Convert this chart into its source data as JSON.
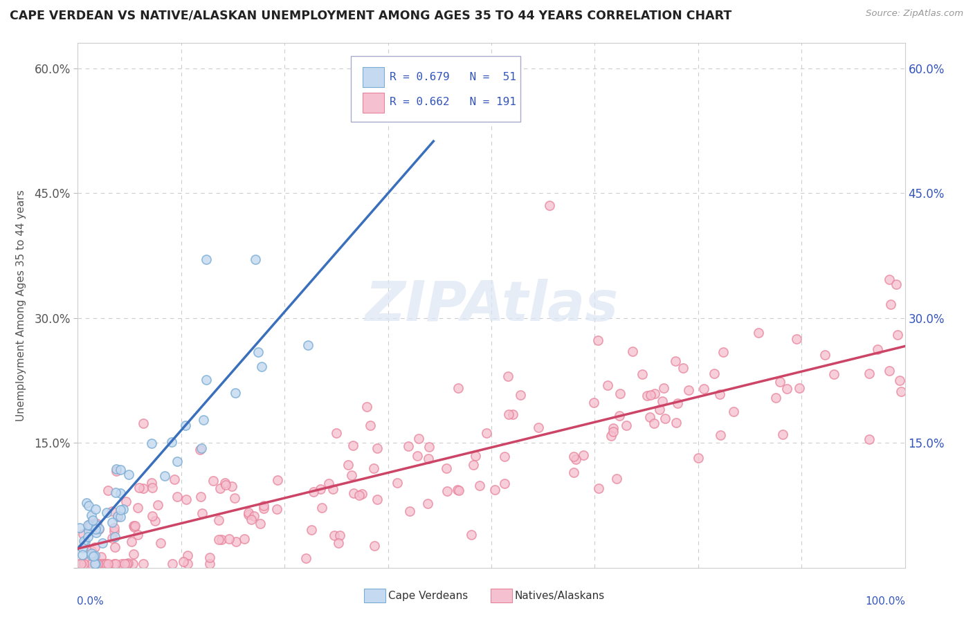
{
  "title": "CAPE VERDEAN VS NATIVE/ALASKAN UNEMPLOYMENT AMONG AGES 35 TO 44 YEARS CORRELATION CHART",
  "source": "Source: ZipAtlas.com",
  "ylabel": "Unemployment Among Ages 35 to 44 years",
  "xlim": [
    0,
    1
  ],
  "ylim": [
    0,
    0.63
  ],
  "yticks": [
    0,
    0.15,
    0.3,
    0.45,
    0.6
  ],
  "cape_verdean_R": 0.679,
  "cape_verdean_N": 51,
  "native_alaskan_R": 0.662,
  "native_alaskan_N": 191,
  "cape_verdean_face_color": "#c5d9f0",
  "cape_verdean_edge_color": "#7aadd4",
  "native_alaskan_face_color": "#f5c0d0",
  "native_alaskan_edge_color": "#e8829a",
  "cape_verdean_line_color": "#3a6fbc",
  "native_alaskan_line_color": "#cc4466",
  "background_color": "#ffffff",
  "grid_color": "#cccccc",
  "title_color": "#222222",
  "ylabel_color": "#555555",
  "legend_text_color": "#3355bb",
  "right_tick_color": "#3355bb",
  "xlabel_color": "#3355bb",
  "watermark_color": "#dce6f5",
  "watermark_alpha": 0.7
}
